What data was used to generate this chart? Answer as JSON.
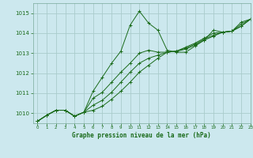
{
  "title": "",
  "xlabel": "Graphe pression niveau de la mer (hPa)",
  "background_color": "#cce8ee",
  "grid_color": "#aacccc",
  "line_color": "#1a6b1a",
  "text_color": "#1a6b1a",
  "xlim": [
    -0.5,
    23
  ],
  "ylim": [
    1009.5,
    1015.5
  ],
  "yticks": [
    1010,
    1011,
    1012,
    1013,
    1014,
    1015
  ],
  "xticks": [
    0,
    1,
    2,
    3,
    4,
    5,
    6,
    7,
    8,
    9,
    10,
    11,
    12,
    13,
    14,
    15,
    16,
    17,
    18,
    19,
    20,
    21,
    22,
    23
  ],
  "series": [
    {
      "x": [
        0,
        1,
        2,
        3,
        4,
        5,
        6,
        7,
        8,
        9,
        10,
        11,
        12,
        13,
        14,
        15,
        16,
        17,
        18,
        19,
        20,
        21,
        22,
        23
      ],
      "y": [
        1009.6,
        1009.9,
        1010.15,
        1010.15,
        1009.85,
        1010.05,
        1011.1,
        1011.8,
        1012.5,
        1013.1,
        1014.4,
        1015.1,
        1014.5,
        1014.15,
        1013.15,
        1013.05,
        1013.05,
        1013.35,
        1013.65,
        1014.15,
        1014.05,
        1014.1,
        1014.55,
        1014.7
      ]
    },
    {
      "x": [
        0,
        1,
        2,
        3,
        4,
        5,
        6,
        7,
        8,
        9,
        10,
        11,
        12,
        13,
        14,
        15,
        16,
        17,
        18,
        19,
        20,
        21,
        22,
        23
      ],
      "y": [
        1009.6,
        1009.9,
        1010.15,
        1010.15,
        1009.85,
        1010.05,
        1010.75,
        1011.05,
        1011.55,
        1012.05,
        1012.5,
        1013.0,
        1013.15,
        1013.05,
        1013.05,
        1013.1,
        1013.3,
        1013.5,
        1013.75,
        1014.0,
        1014.05,
        1014.1,
        1014.45,
        1014.7
      ]
    },
    {
      "x": [
        0,
        1,
        2,
        3,
        4,
        5,
        6,
        7,
        8,
        9,
        10,
        11,
        12,
        13,
        14,
        15,
        16,
        17,
        18,
        19,
        20,
        21,
        22,
        23
      ],
      "y": [
        1009.6,
        1009.9,
        1010.15,
        1010.15,
        1009.85,
        1010.05,
        1010.4,
        1010.65,
        1011.05,
        1011.55,
        1012.05,
        1012.5,
        1012.75,
        1012.9,
        1013.05,
        1013.1,
        1013.25,
        1013.45,
        1013.7,
        1013.9,
        1014.05,
        1014.1,
        1014.35,
        1014.7
      ]
    },
    {
      "x": [
        0,
        1,
        2,
        3,
        4,
        5,
        6,
        7,
        8,
        9,
        10,
        11,
        12,
        13,
        14,
        15,
        16,
        17,
        18,
        19,
        20,
        21,
        22,
        23
      ],
      "y": [
        1009.6,
        1009.9,
        1010.15,
        1010.15,
        1009.85,
        1010.05,
        1010.15,
        1010.35,
        1010.7,
        1011.1,
        1011.55,
        1012.05,
        1012.4,
        1012.75,
        1013.05,
        1013.1,
        1013.2,
        1013.4,
        1013.65,
        1013.85,
        1014.05,
        1014.1,
        1014.35,
        1014.7
      ]
    }
  ]
}
